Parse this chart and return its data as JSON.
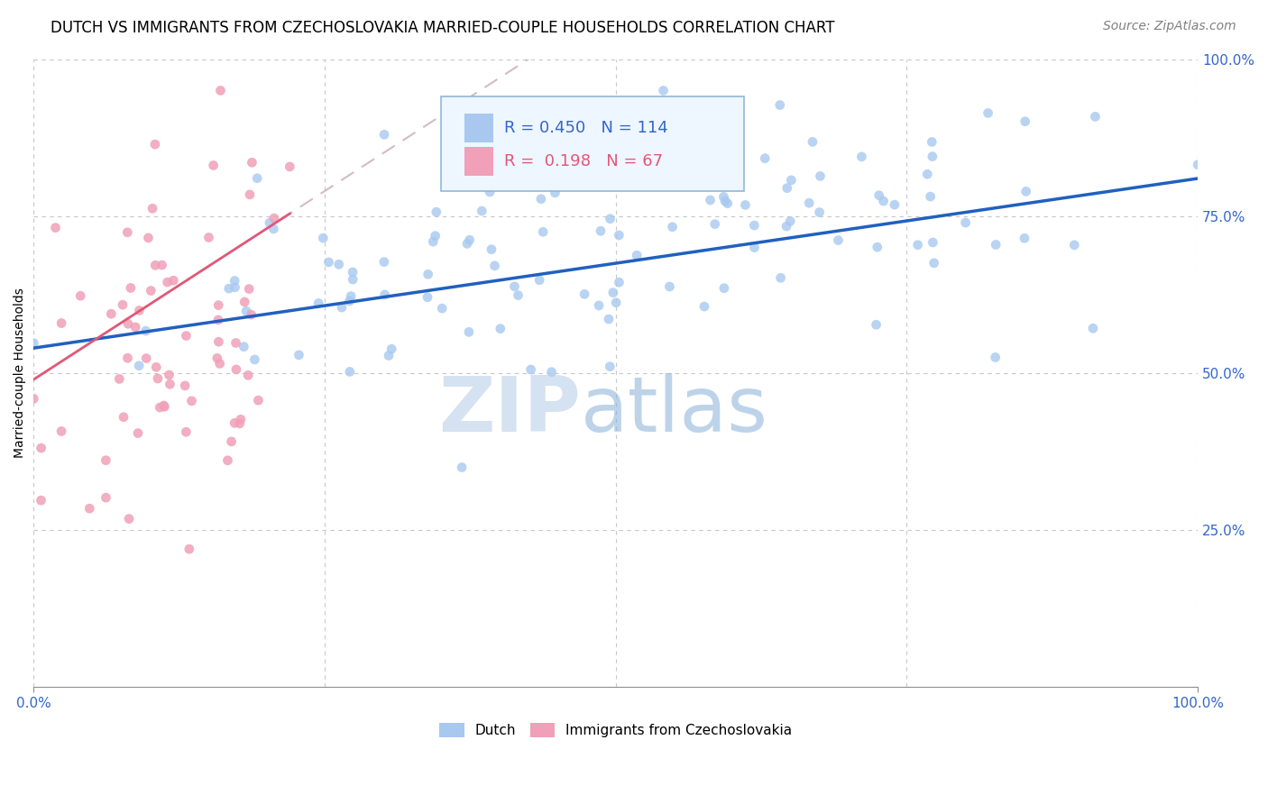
{
  "title": "DUTCH VS IMMIGRANTS FROM CZECHOSLOVAKIA MARRIED-COUPLE HOUSEHOLDS CORRELATION CHART",
  "source": "Source: ZipAtlas.com",
  "ylabel": "Married-couple Households",
  "right_yticks": [
    "25.0%",
    "50.0%",
    "75.0%",
    "100.0%"
  ],
  "right_ytick_vals": [
    0.25,
    0.5,
    0.75,
    1.0
  ],
  "blue_R": 0.45,
  "blue_N": 114,
  "pink_R": 0.198,
  "pink_N": 67,
  "blue_color": "#a8c8f0",
  "pink_color": "#f0a0b8",
  "blue_line_color": "#2060c0",
  "pink_line_color": "#e05878",
  "pink_dash_color": "#d0a0b0",
  "watermark_zip": "ZIP",
  "watermark_atlas": "atlas",
  "title_fontsize": 12,
  "source_fontsize": 10,
  "legend_fontsize": 13,
  "axis_tick_fontsize": 11
}
